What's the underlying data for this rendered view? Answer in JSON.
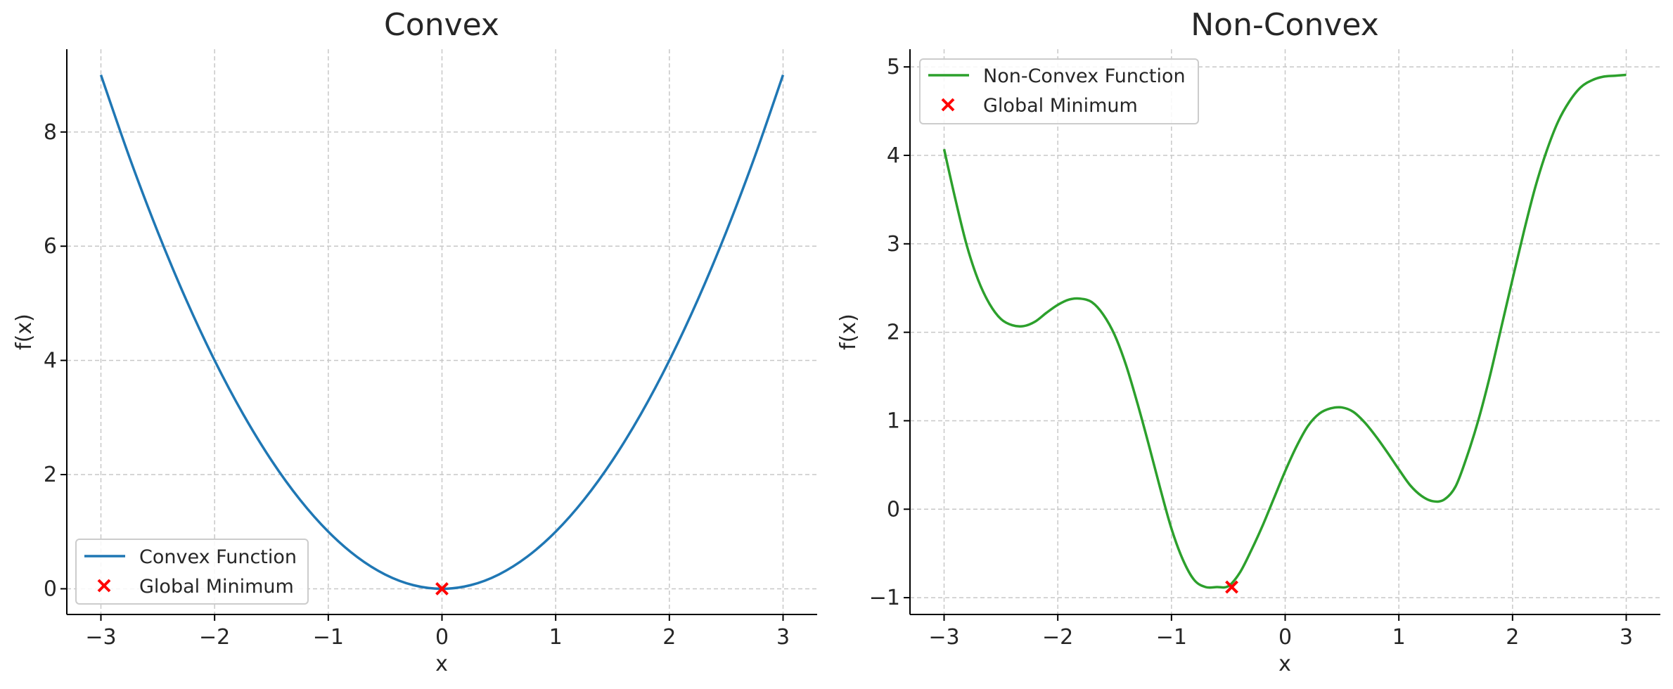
{
  "chart_data": [
    {
      "type": "line",
      "title": "Convex",
      "xlabel": "x",
      "ylabel": "f(x)",
      "xlim": [
        -3.3,
        3.3
      ],
      "ylim": [
        -0.45,
        9.45
      ],
      "x_ticks": [
        -3,
        -2,
        -1,
        0,
        1,
        2,
        3
      ],
      "x_tick_labels": [
        "−3",
        "−2",
        "−1",
        "0",
        "1",
        "2",
        "3"
      ],
      "y_ticks": [
        0,
        2,
        4,
        6,
        8
      ],
      "y_tick_labels": [
        "0",
        "2",
        "4",
        "6",
        "8"
      ],
      "grid": true,
      "legend": "lower-left",
      "series": [
        {
          "name": "Convex Function",
          "color": "#1f77b4",
          "x": [
            -3,
            -2.75,
            -2.5,
            -2.25,
            -2,
            -1.75,
            -1.5,
            -1.25,
            -1,
            -0.75,
            -0.5,
            -0.25,
            0,
            0.25,
            0.5,
            0.75,
            1,
            1.25,
            1.5,
            1.75,
            2,
            2.25,
            2.5,
            2.75,
            3
          ],
          "y": [
            9,
            7.5625,
            6.25,
            5.0625,
            4,
            3.0625,
            2.25,
            1.5625,
            1,
            0.5625,
            0.25,
            0.0625,
            0,
            0.0625,
            0.25,
            0.5625,
            1,
            1.5625,
            2.25,
            3.0625,
            4,
            5.0625,
            6.25,
            7.5625,
            9
          ]
        }
      ],
      "markers": [
        {
          "name": "Global Minimum",
          "color": "#ff0000",
          "x": 0,
          "y": 0
        }
      ]
    },
    {
      "type": "line",
      "title": "Non-Convex",
      "xlabel": "x",
      "ylabel": "f(x)",
      "xlim": [
        -3.3,
        3.3
      ],
      "ylim": [
        -1.19,
        5.2
      ],
      "x_ticks": [
        -3,
        -2,
        -1,
        0,
        1,
        2,
        3
      ],
      "x_tick_labels": [
        "−3",
        "−2",
        "−1",
        "0",
        "1",
        "2",
        "3"
      ],
      "y_ticks": [
        -1,
        0,
        1,
        2,
        3,
        4,
        5
      ],
      "y_tick_labels": [
        "−1",
        "0",
        "1",
        "2",
        "3",
        "4",
        "5"
      ],
      "grid": true,
      "legend": "top-left",
      "series": [
        {
          "name": "Non-Convex Function",
          "color": "#2ca02c",
          "x": [
            -3,
            -2.9,
            -2.8,
            -2.7,
            -2.6,
            -2.5,
            -2.4,
            -2.3,
            -2.2,
            -2.1,
            -2,
            -1.9,
            -1.8,
            -1.7,
            -1.6,
            -1.5,
            -1.4,
            -1.3,
            -1.2,
            -1.1,
            -1,
            -0.9,
            -0.8,
            -0.7,
            -0.6,
            -0.5,
            -0.4,
            -0.3,
            -0.2,
            -0.1,
            0,
            0.1,
            0.2,
            0.3,
            0.4,
            0.5,
            0.6,
            0.7,
            0.8,
            0.9,
            1,
            1.1,
            1.2,
            1.3,
            1.4,
            1.5,
            1.6,
            1.7,
            1.8,
            1.9,
            2,
            2.1,
            2.2,
            2.3,
            2.4,
            2.5,
            2.6,
            2.7,
            2.8,
            2.9,
            3
          ],
          "y": [
            4.07,
            3.5,
            2.98,
            2.59,
            2.32,
            2.15,
            2.08,
            2.07,
            2.12,
            2.22,
            2.31,
            2.37,
            2.38,
            2.34,
            2.2,
            1.97,
            1.63,
            1.2,
            0.73,
            0.24,
            -0.22,
            -0.57,
            -0.8,
            -0.88,
            -0.88,
            -0.87,
            -0.72,
            -0.47,
            -0.19,
            0.12,
            0.43,
            0.71,
            0.94,
            1.08,
            1.14,
            1.15,
            1.1,
            0.98,
            0.82,
            0.64,
            0.45,
            0.27,
            0.15,
            0.09,
            0.11,
            0.26,
            0.6,
            1.01,
            1.5,
            2.05,
            2.6,
            3.14,
            3.64,
            4.05,
            4.38,
            4.61,
            4.77,
            4.85,
            4.89,
            4.9,
            4.91
          ]
        }
      ],
      "markers": [
        {
          "name": "Global Minimum",
          "color": "#ff0000",
          "x": -0.47,
          "y": -0.88
        }
      ]
    }
  ]
}
